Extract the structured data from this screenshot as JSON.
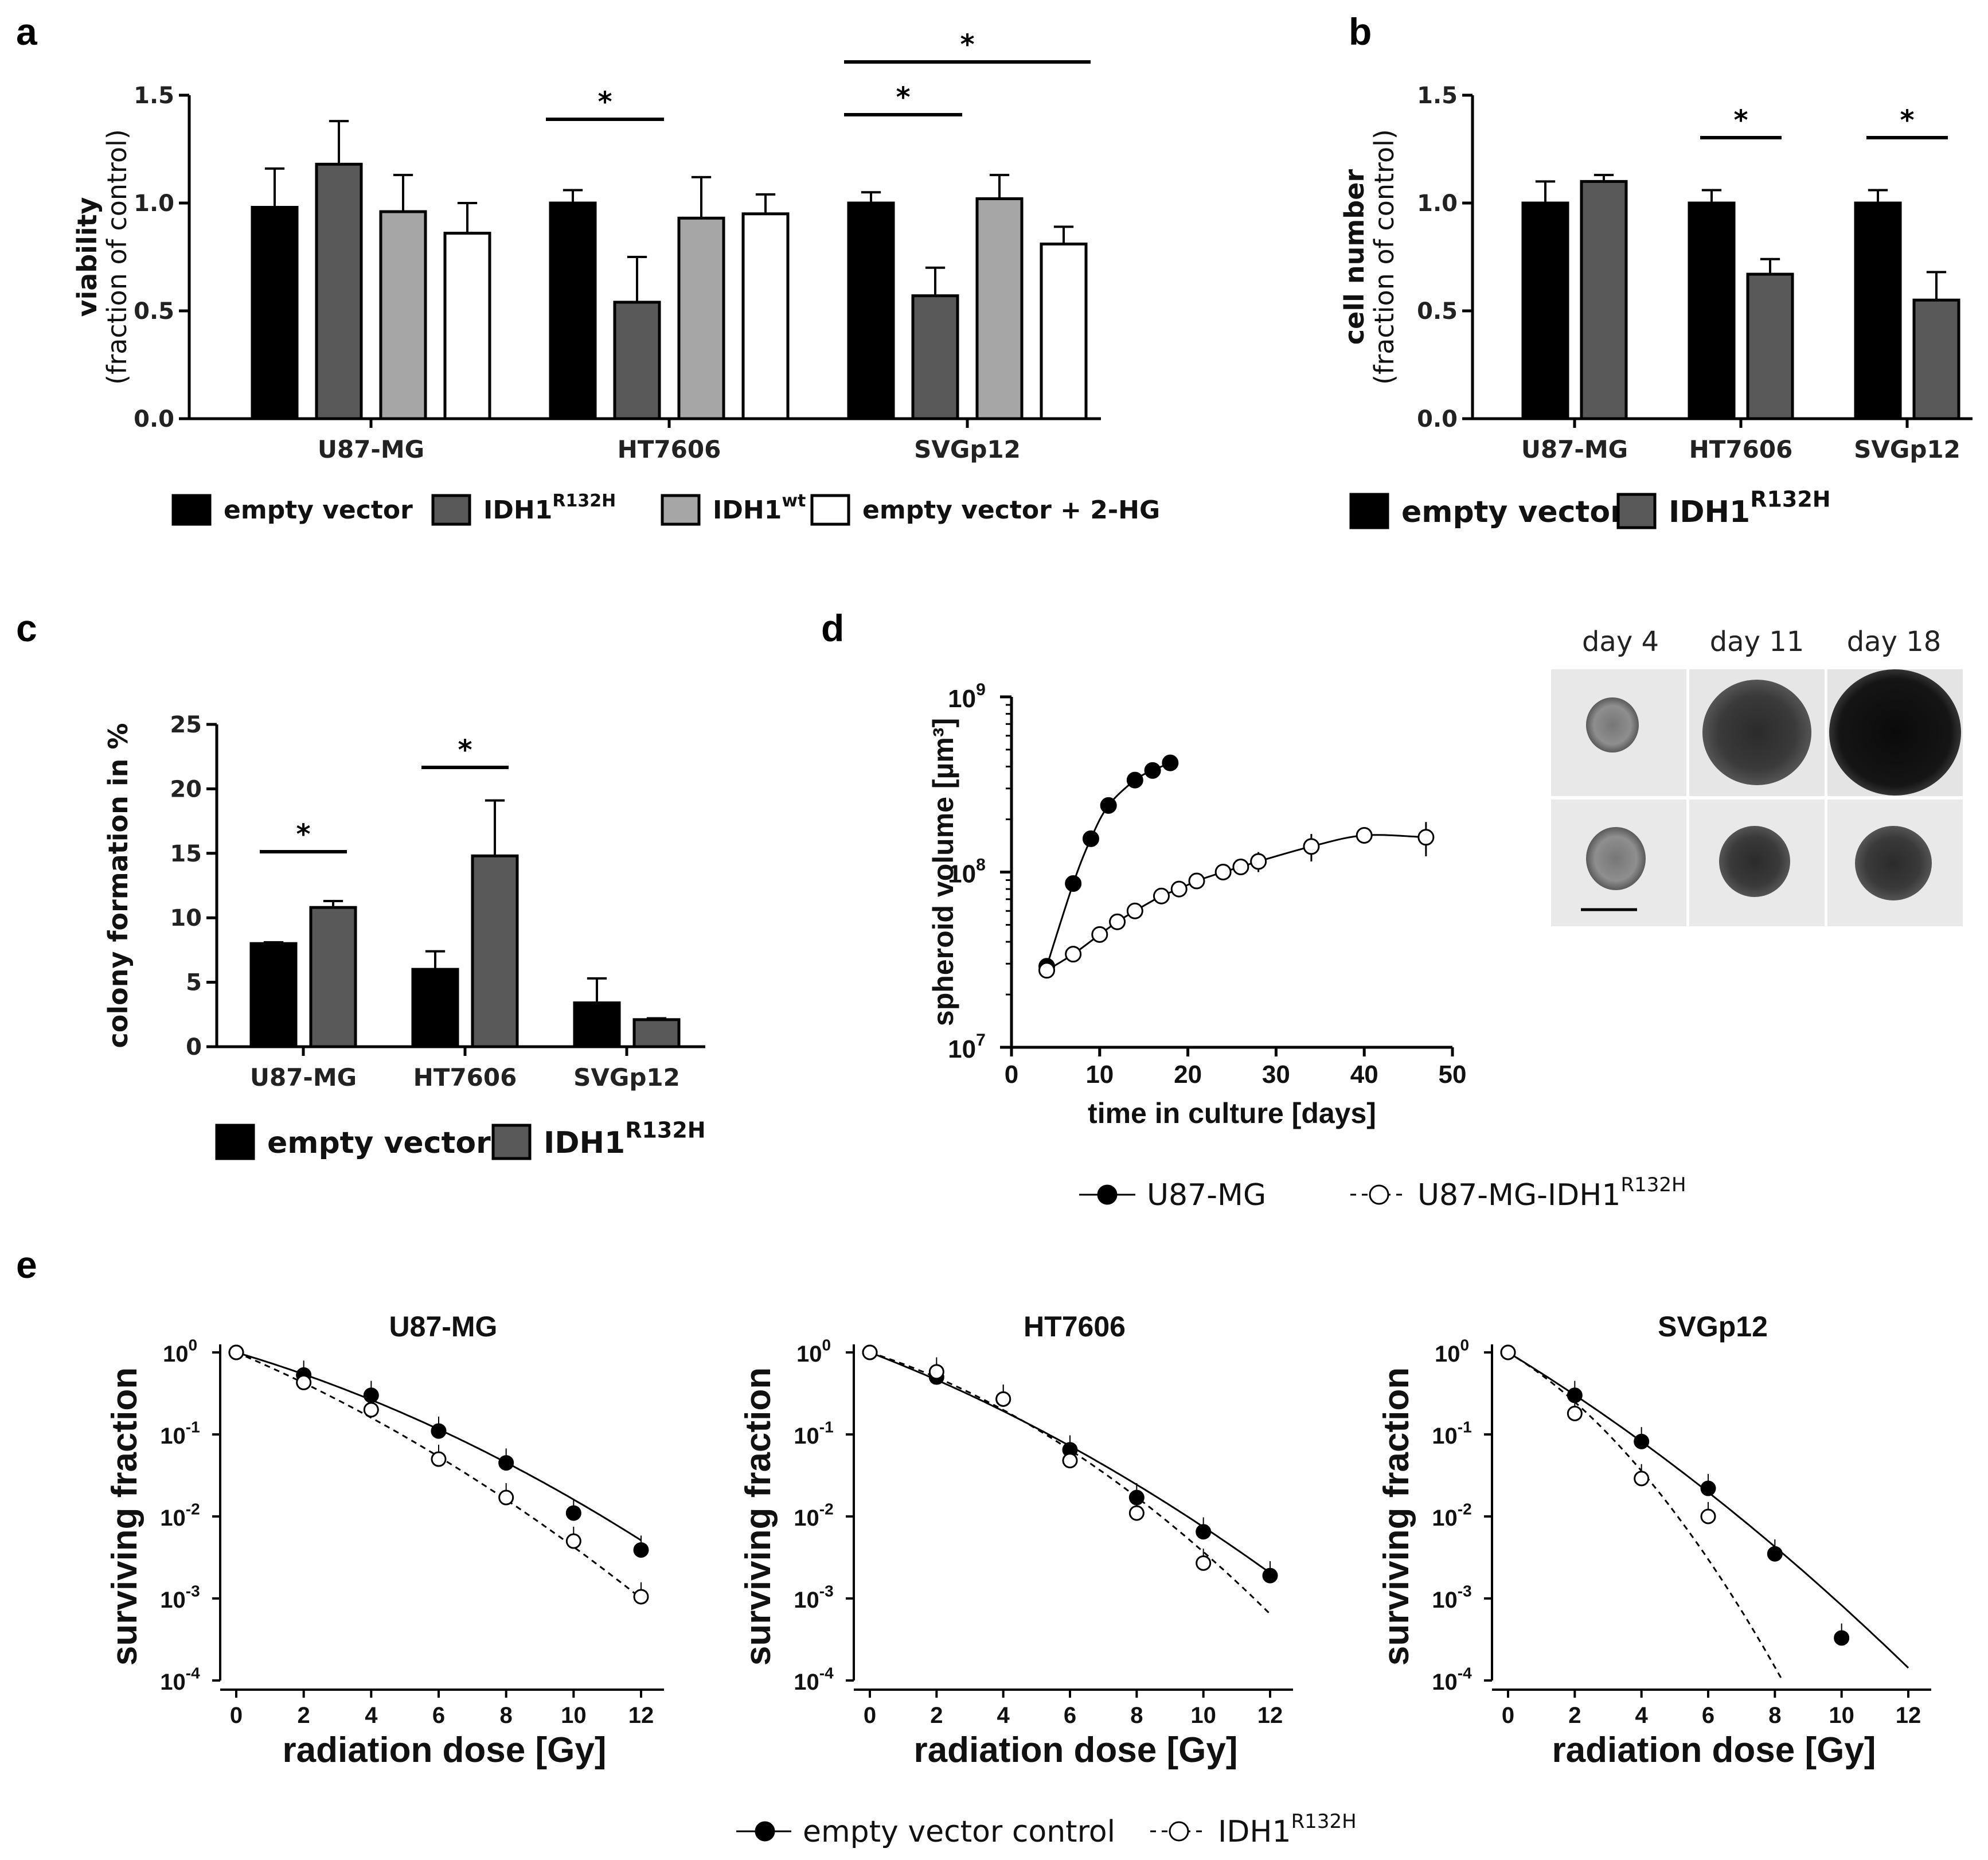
{
  "panels": {
    "a": "a",
    "b": "b",
    "c": "c",
    "d": "d",
    "e": "e"
  },
  "colors": {
    "empty_vector": "#000000",
    "idh1_r132h": "#595959",
    "idh1_wt": "#a6a6a6",
    "empty_2hg": "#ffffff"
  },
  "chart_data": [
    {
      "id": "a",
      "type": "bar",
      "ylabel_bold": "viability",
      "ylabel_sub": "(fraction of control)",
      "ylim": [
        0,
        1.5
      ],
      "yticks": [
        "0.0",
        "0.5",
        "1.0",
        "1.5"
      ],
      "ytick_values": [
        0,
        0.5,
        1.0,
        1.5
      ],
      "categories": [
        "U87-MG",
        "HT7606",
        "SVGp12"
      ],
      "series": [
        {
          "name": "empty vector",
          "values": [
            0.98,
            1.0,
            1.0
          ],
          "errors": [
            0.18,
            0.06,
            0.05
          ]
        },
        {
          "name": "IDH1",
          "sup": "R132H",
          "values": [
            1.18,
            0.54,
            0.57
          ],
          "errors": [
            0.2,
            0.21,
            0.13
          ]
        },
        {
          "name": "IDH1",
          "sup": "wt",
          "values": [
            0.96,
            0.93,
            1.02
          ],
          "errors": [
            0.17,
            0.19,
            0.11
          ]
        },
        {
          "name": "empty vector + 2-HG",
          "values": [
            0.86,
            0.95,
            0.81
          ],
          "errors": [
            0.14,
            0.09,
            0.08
          ]
        }
      ],
      "significance": [
        {
          "label": "*",
          "category": 1,
          "from_series": 0,
          "to_series": 1
        },
        {
          "label": "*",
          "category": 2,
          "from_series": 0,
          "to_series": 1
        },
        {
          "label": "*",
          "category": 2,
          "from_series": 0,
          "to_series": 3
        }
      ]
    },
    {
      "id": "b",
      "type": "bar",
      "ylabel_bold": "cell number",
      "ylabel_sub": "(fraction of control)",
      "ylim": [
        0,
        1.5
      ],
      "yticks": [
        "0.0",
        "0.5",
        "1.0",
        "1.5"
      ],
      "ytick_values": [
        0,
        0.5,
        1.0,
        1.5
      ],
      "categories": [
        "U87-MG",
        "HT7606",
        "SVGp12"
      ],
      "series": [
        {
          "name": "empty vector",
          "values": [
            1.0,
            1.0,
            1.0
          ],
          "errors": [
            0.1,
            0.06,
            0.06
          ]
        },
        {
          "name": "IDH1",
          "sup": "R132H",
          "values": [
            1.1,
            0.67,
            0.55
          ],
          "errors": [
            0.03,
            0.07,
            0.13
          ]
        }
      ],
      "significance": [
        {
          "label": "*",
          "category": 1,
          "from_series": 0,
          "to_series": 1
        },
        {
          "label": "*",
          "category": 2,
          "from_series": 0,
          "to_series": 1
        }
      ]
    },
    {
      "id": "c",
      "type": "bar",
      "ylabel": "colony formation in  %",
      "ylim": [
        0,
        25
      ],
      "yticks": [
        "0",
        "5",
        "10",
        "15",
        "20",
        "25"
      ],
      "ytick_values": [
        0,
        5,
        10,
        15,
        20,
        25
      ],
      "categories": [
        "U87-MG",
        "HT7606",
        "SVGp12"
      ],
      "series": [
        {
          "name": "empty vector",
          "values": [
            8.0,
            6.0,
            3.4
          ],
          "errors": [
            0.1,
            1.4,
            1.9
          ]
        },
        {
          "name": "IDH1",
          "sup": "R132H",
          "values": [
            10.8,
            14.8,
            2.1
          ],
          "errors": [
            0.5,
            4.3,
            0.1
          ]
        }
      ],
      "significance": [
        {
          "label": "*",
          "category": 0,
          "from_series": 0,
          "to_series": 1
        },
        {
          "label": "*",
          "category": 1,
          "from_series": 0,
          "to_series": 1
        }
      ]
    },
    {
      "id": "d",
      "type": "line",
      "yscale": "log",
      "xlabel": "time in culture [days]",
      "ylabel": "spheroid volume [µm³]",
      "xlim": [
        0,
        50
      ],
      "xticks": [
        "0",
        "10",
        "20",
        "30",
        "40",
        "50"
      ],
      "xtick_values": [
        0,
        10,
        20,
        30,
        40,
        50
      ],
      "ylim_exp": [
        7,
        9
      ],
      "ytick_exps": [
        7,
        8,
        9
      ],
      "ytick_base": "10",
      "ytick_sups": [
        "7",
        "8",
        "9"
      ],
      "series": [
        {
          "name": "U87-MG",
          "marker": "filled",
          "x": [
            4,
            7,
            9,
            11,
            14,
            16,
            18
          ],
          "y": [
            29000000.0,
            86000000.0,
            155000000.0,
            240000000.0,
            335000000.0,
            380000000.0,
            420000000.0
          ]
        },
        {
          "name": "U87-MG-IDH1",
          "sup": "R132H",
          "marker": "open",
          "x": [
            4,
            7,
            10,
            12,
            14,
            17,
            19,
            21,
            24,
            26,
            28,
            34,
            40,
            47
          ],
          "y": [
            27500000.0,
            34000000.0,
            44000000.0,
            52000000.0,
            60000000.0,
            73000000.0,
            80000000.0,
            89000000.0,
            100000000.0,
            107000000.0,
            115000000.0,
            140000000.0,
            162000000.0,
            158000000.0
          ],
          "errors": [
            0,
            0,
            0,
            0,
            0,
            0,
            0,
            0,
            0,
            0,
            15000000.0,
            25000000.0,
            0,
            35000000.0
          ]
        }
      ],
      "image_labels": [
        "day 4",
        "day 11",
        "day 18"
      ]
    },
    {
      "id": "e1",
      "type": "scatter",
      "yscale": "log",
      "title": "U87-MG",
      "xlabel": "radiation dose [Gy]",
      "ylabel": "surviving fraction",
      "xlim": [
        0,
        12
      ],
      "xticks": [
        "0",
        "2",
        "4",
        "6",
        "8",
        "10",
        "12"
      ],
      "xtick_values": [
        0,
        2,
        4,
        6,
        8,
        10,
        12
      ],
      "ylim_exp": [
        -4,
        0
      ],
      "ytick_exps": [
        0,
        -1,
        -2,
        -3,
        -4
      ],
      "ytick_base": "10",
      "ytick_sups": [
        "0",
        "-1",
        "-2",
        "-3",
        "-4"
      ],
      "series": [
        {
          "name": "empty vector control",
          "marker": "filled",
          "x": [
            0,
            2,
            4,
            6,
            8,
            10,
            12
          ],
          "y": [
            1.0,
            0.53,
            0.3,
            0.11,
            0.045,
            0.011,
            0.0039
          ],
          "fit": {
            "alpha": 0.28,
            "beta": 0.0133,
            "max_x": 12,
            "dash": false
          }
        },
        {
          "name": "IDH1",
          "sup": "R132H",
          "marker": "open",
          "x": [
            0,
            2,
            4,
            6,
            8,
            10,
            12
          ],
          "y": [
            1.0,
            0.43,
            0.2,
            0.05,
            0.017,
            0.005,
            0.00105
          ],
          "fit": {
            "alpha": 0.4,
            "beta": 0.0146,
            "max_x": 12,
            "dash": true
          }
        }
      ]
    },
    {
      "id": "e2",
      "type": "scatter",
      "yscale": "log",
      "title": "HT7606",
      "xlabel": "radiation dose [Gy]",
      "ylabel": "surviving fraction",
      "xlim": [
        0,
        12
      ],
      "xticks": [
        "0",
        "2",
        "4",
        "6",
        "8",
        "10",
        "12"
      ],
      "xtick_values": [
        0,
        2,
        4,
        6,
        8,
        10,
        12
      ],
      "ylim_exp": [
        -4,
        0
      ],
      "ytick_exps": [
        0,
        -1,
        -2,
        -3,
        -4
      ],
      "ytick_base": "10",
      "ytick_sups": [
        "0",
        "-1",
        "-2",
        "-3",
        "-4"
      ],
      "series": [
        {
          "name": "empty vector control",
          "marker": "filled",
          "x": [
            0,
            2,
            4,
            6,
            8,
            10,
            12
          ],
          "y": [
            1.0,
            0.5,
            0.27,
            0.065,
            0.017,
            0.0065,
            0.0019
          ],
          "fit": {
            "alpha": 0.36,
            "beta": 0.013,
            "max_x": 12,
            "dash": false
          }
        },
        {
          "name": "IDH1",
          "sup": "R132H",
          "marker": "open",
          "x": [
            0,
            2,
            4,
            6,
            8,
            10
          ],
          "y": [
            1.0,
            0.58,
            0.27,
            0.048,
            0.011,
            0.0027
          ],
          "fit": {
            "alpha": 0.3,
            "beta": 0.026,
            "max_x": 12,
            "dash": true
          }
        }
      ]
    },
    {
      "id": "e3",
      "type": "scatter",
      "yscale": "log",
      "title": "SVGp12",
      "xlabel": "radiation dose [Gy]",
      "ylabel": "surviving fraction",
      "xlim": [
        0,
        12
      ],
      "xticks": [
        "0",
        "2",
        "4",
        "6",
        "8",
        "10",
        "12"
      ],
      "xtick_values": [
        0,
        2,
        4,
        6,
        8,
        10,
        12
      ],
      "ylim_exp": [
        -4,
        0
      ],
      "ytick_exps": [
        0,
        -1,
        -2,
        -3,
        -4
      ],
      "ytick_base": "10",
      "ytick_sups": [
        "0",
        "-1",
        "-2",
        "-3",
        "-4"
      ],
      "series": [
        {
          "name": "empty vector control",
          "marker": "filled",
          "x": [
            0,
            2,
            4,
            6,
            8,
            10
          ],
          "y": [
            1.0,
            0.3,
            0.082,
            0.022,
            0.0035,
            0.00033
          ],
          "fit": {
            "alpha": 0.57,
            "beta": 0.014,
            "max_x": 12,
            "dash": false
          }
        },
        {
          "name": "IDH1",
          "sup": "R132H",
          "marker": "open",
          "x": [
            0,
            2,
            4,
            6
          ],
          "y": [
            1.0,
            0.18,
            0.029,
            0.01
          ],
          "fit": {
            "alpha": 0.56,
            "beta": 0.068,
            "max_x": 8.3,
            "dash": true
          }
        }
      ]
    }
  ],
  "legend_a": [
    {
      "text": "empty vector",
      "sup": ""
    },
    {
      "text": "IDH1",
      "sup": "R132H"
    },
    {
      "text": "IDH1",
      "sup": "wt"
    },
    {
      "text": "empty vector + 2-HG",
      "sup": ""
    }
  ],
  "legend_b": [
    {
      "text": "empty vector",
      "sup": ""
    },
    {
      "text": "IDH1",
      "sup": "R132H"
    }
  ],
  "legend_c": [
    {
      "text": "empty vector",
      "sup": ""
    },
    {
      "text": "IDH1",
      "sup": "R132H"
    }
  ],
  "legend_d": [
    {
      "text": "U87-MG",
      "sup": ""
    },
    {
      "text": "U87-MG-IDH1",
      "sup": "R132H"
    }
  ],
  "legend_e": [
    {
      "text": "empty vector control",
      "sup": ""
    },
    {
      "text": "IDH1",
      "sup": "R132H"
    }
  ]
}
